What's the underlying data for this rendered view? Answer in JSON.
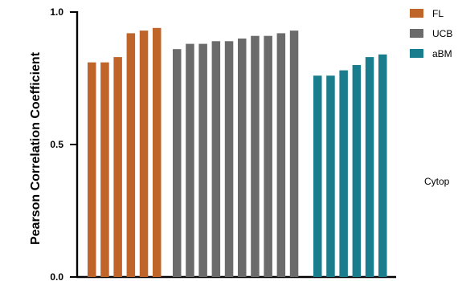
{
  "chart_data": {
    "type": "bar",
    "ylabel": "Pearson Correlation Coefficient",
    "xlabel": "",
    "ylim": [
      0,
      1.0
    ],
    "yticks": [
      {
        "value": 0.0,
        "label": "0.0"
      },
      {
        "value": 0.5,
        "label": "0.5"
      },
      {
        "value": 1.0,
        "label": "1.0"
      }
    ],
    "grid": false,
    "legend_position": "top-right",
    "series": [
      {
        "name": "FL",
        "color": "#C0652A",
        "values": [
          0.81,
          0.81,
          0.83,
          0.92,
          0.93,
          0.94
        ]
      },
      {
        "name": "UCB",
        "color": "#6B6B6B",
        "values": [
          0.86,
          0.88,
          0.88,
          0.89,
          0.89,
          0.9,
          0.91,
          0.91,
          0.92,
          0.93
        ]
      },
      {
        "name": "aBM",
        "color": "#1A7D8E",
        "values": [
          0.76,
          0.76,
          0.78,
          0.8,
          0.83,
          0.84
        ]
      }
    ]
  },
  "side_text": "Cytop"
}
